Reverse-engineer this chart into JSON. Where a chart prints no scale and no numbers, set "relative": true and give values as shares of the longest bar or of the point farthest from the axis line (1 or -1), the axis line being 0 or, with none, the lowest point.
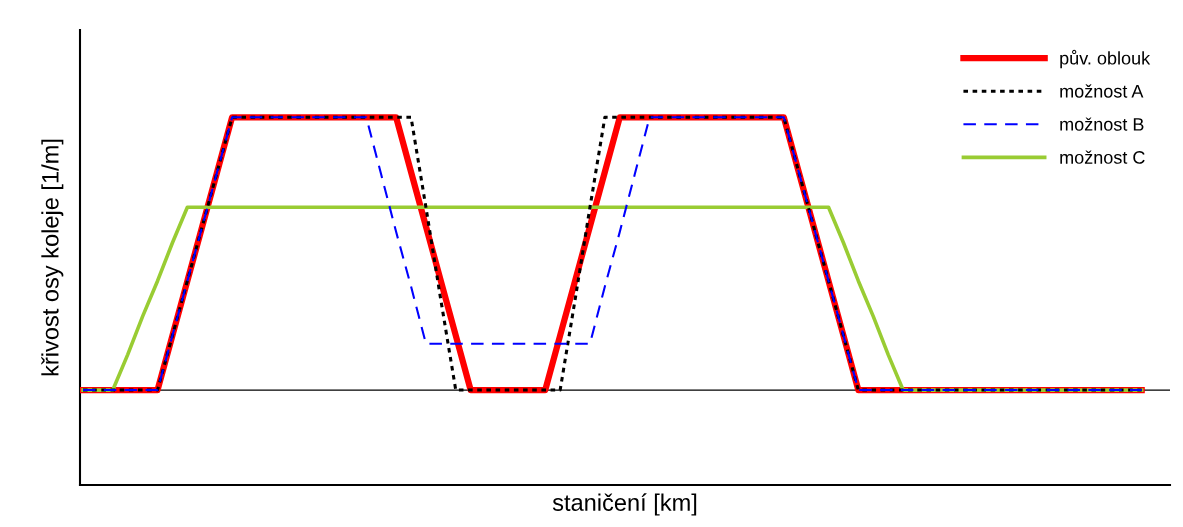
{
  "chart_data": {
    "type": "line",
    "relative": true,
    "xlabel": "staničení [km]",
    "ylabel": "křivost osy koleje [1/m]",
    "legend": "top right",
    "tick_labels": false,
    "marker": "none",
    "categories": [
      null,
      null,
      null,
      null,
      null,
      null,
      null,
      null,
      null,
      null,
      null,
      null,
      null,
      null,
      null,
      null,
      null,
      null,
      null,
      null,
      null,
      null,
      null,
      null,
      null,
      null,
      null,
      null,
      null,
      null,
      null,
      null,
      null,
      null,
      null,
      null,
      null,
      null,
      null,
      null,
      null,
      null,
      null,
      null,
      null,
      null,
      null,
      null,
      null,
      null,
      null,
      null,
      null,
      null,
      null,
      null,
      null,
      null,
      null,
      null,
      null,
      null,
      null,
      null,
      null,
      null,
      null,
      null,
      null,
      null,
      null,
      null
    ],
    "series": [
      {
        "name": "pův. oblouk",
        "color": "#ff0000",
        "line_style": "solid",
        "values": [
          0,
          0,
          0,
          0,
          0,
          0,
          0.2,
          0.4,
          0.6,
          0.8,
          1,
          1,
          1,
          1,
          1,
          1,
          1,
          1,
          1,
          1,
          1,
          1,
          0.8,
          0.6,
          0.4,
          0.2,
          0,
          0,
          0,
          0,
          0,
          0,
          0.2,
          0.4,
          0.6,
          0.8,
          1,
          1,
          1,
          1,
          1,
          1,
          1,
          1,
          1,
          1,
          1,
          1,
          0.8,
          0.6,
          0.4,
          0.2,
          0,
          0,
          0,
          0,
          0,
          0,
          0,
          0,
          0,
          0,
          0,
          0,
          0,
          0,
          0,
          0,
          0,
          0,
          0,
          0
        ]
      },
      {
        "name": "možnost A",
        "color": "#000000",
        "line_style": "dotted",
        "values": [
          0,
          0,
          0,
          0,
          0,
          0,
          0.2,
          0.4,
          0.6,
          0.8,
          1,
          1,
          1,
          1,
          1,
          1,
          1,
          1,
          1,
          1,
          1,
          1,
          1,
          0.67,
          0.33,
          0,
          0,
          0,
          0,
          0,
          0,
          0,
          0,
          0.33,
          0.67,
          1,
          1,
          1,
          1,
          1,
          1,
          1,
          1,
          1,
          1,
          1,
          1,
          1,
          0.8,
          0.6,
          0.4,
          0.2,
          0,
          0,
          0,
          0,
          0,
          0,
          0,
          0,
          0,
          0,
          0,
          0,
          0,
          0,
          0,
          0,
          0,
          0,
          0,
          0
        ]
      },
      {
        "name": "možnost B",
        "color": "#0000ff",
        "line_style": "dashed",
        "values": [
          0,
          0,
          0,
          0,
          0,
          0,
          0.2,
          0.4,
          0.6,
          0.8,
          1,
          1,
          1,
          1,
          1,
          1,
          1,
          1,
          1,
          1,
          0.79,
          0.58,
          0.38,
          0.17,
          0.17,
          0.17,
          0.17,
          0.17,
          0.17,
          0.17,
          0.17,
          0.17,
          0.17,
          0.17,
          0.17,
          0.38,
          0.58,
          0.79,
          1,
          1,
          1,
          1,
          1,
          1,
          1,
          1,
          1,
          1,
          0.8,
          0.6,
          0.4,
          0.2,
          0,
          0,
          0,
          0,
          0,
          0,
          0,
          0,
          0,
          0,
          0,
          0,
          0,
          0,
          0,
          0,
          0,
          0,
          0,
          0
        ]
      },
      {
        "name": "možnost C",
        "color": "#99cc33",
        "line_style": "solid",
        "values": [
          0,
          0,
          0,
          0.13,
          0.27,
          0.4,
          0.54,
          0.67,
          0.67,
          0.67,
          0.67,
          0.67,
          0.67,
          0.67,
          0.67,
          0.67,
          0.67,
          0.67,
          0.67,
          0.67,
          0.67,
          0.67,
          0.67,
          0.67,
          0.67,
          0.67,
          0.67,
          0.67,
          0.67,
          0.67,
          0.67,
          0.67,
          0.67,
          0.67,
          0.67,
          0.67,
          0.67,
          0.67,
          0.67,
          0.67,
          0.67,
          0.67,
          0.67,
          0.67,
          0.67,
          0.67,
          0.67,
          0.67,
          0.67,
          0.67,
          0.67,
          0.54,
          0.4,
          0.27,
          0.13,
          0,
          0,
          0,
          0,
          0,
          0,
          0,
          0,
          0,
          0,
          0,
          0,
          0,
          0,
          0,
          0,
          0
        ]
      }
    ]
  }
}
